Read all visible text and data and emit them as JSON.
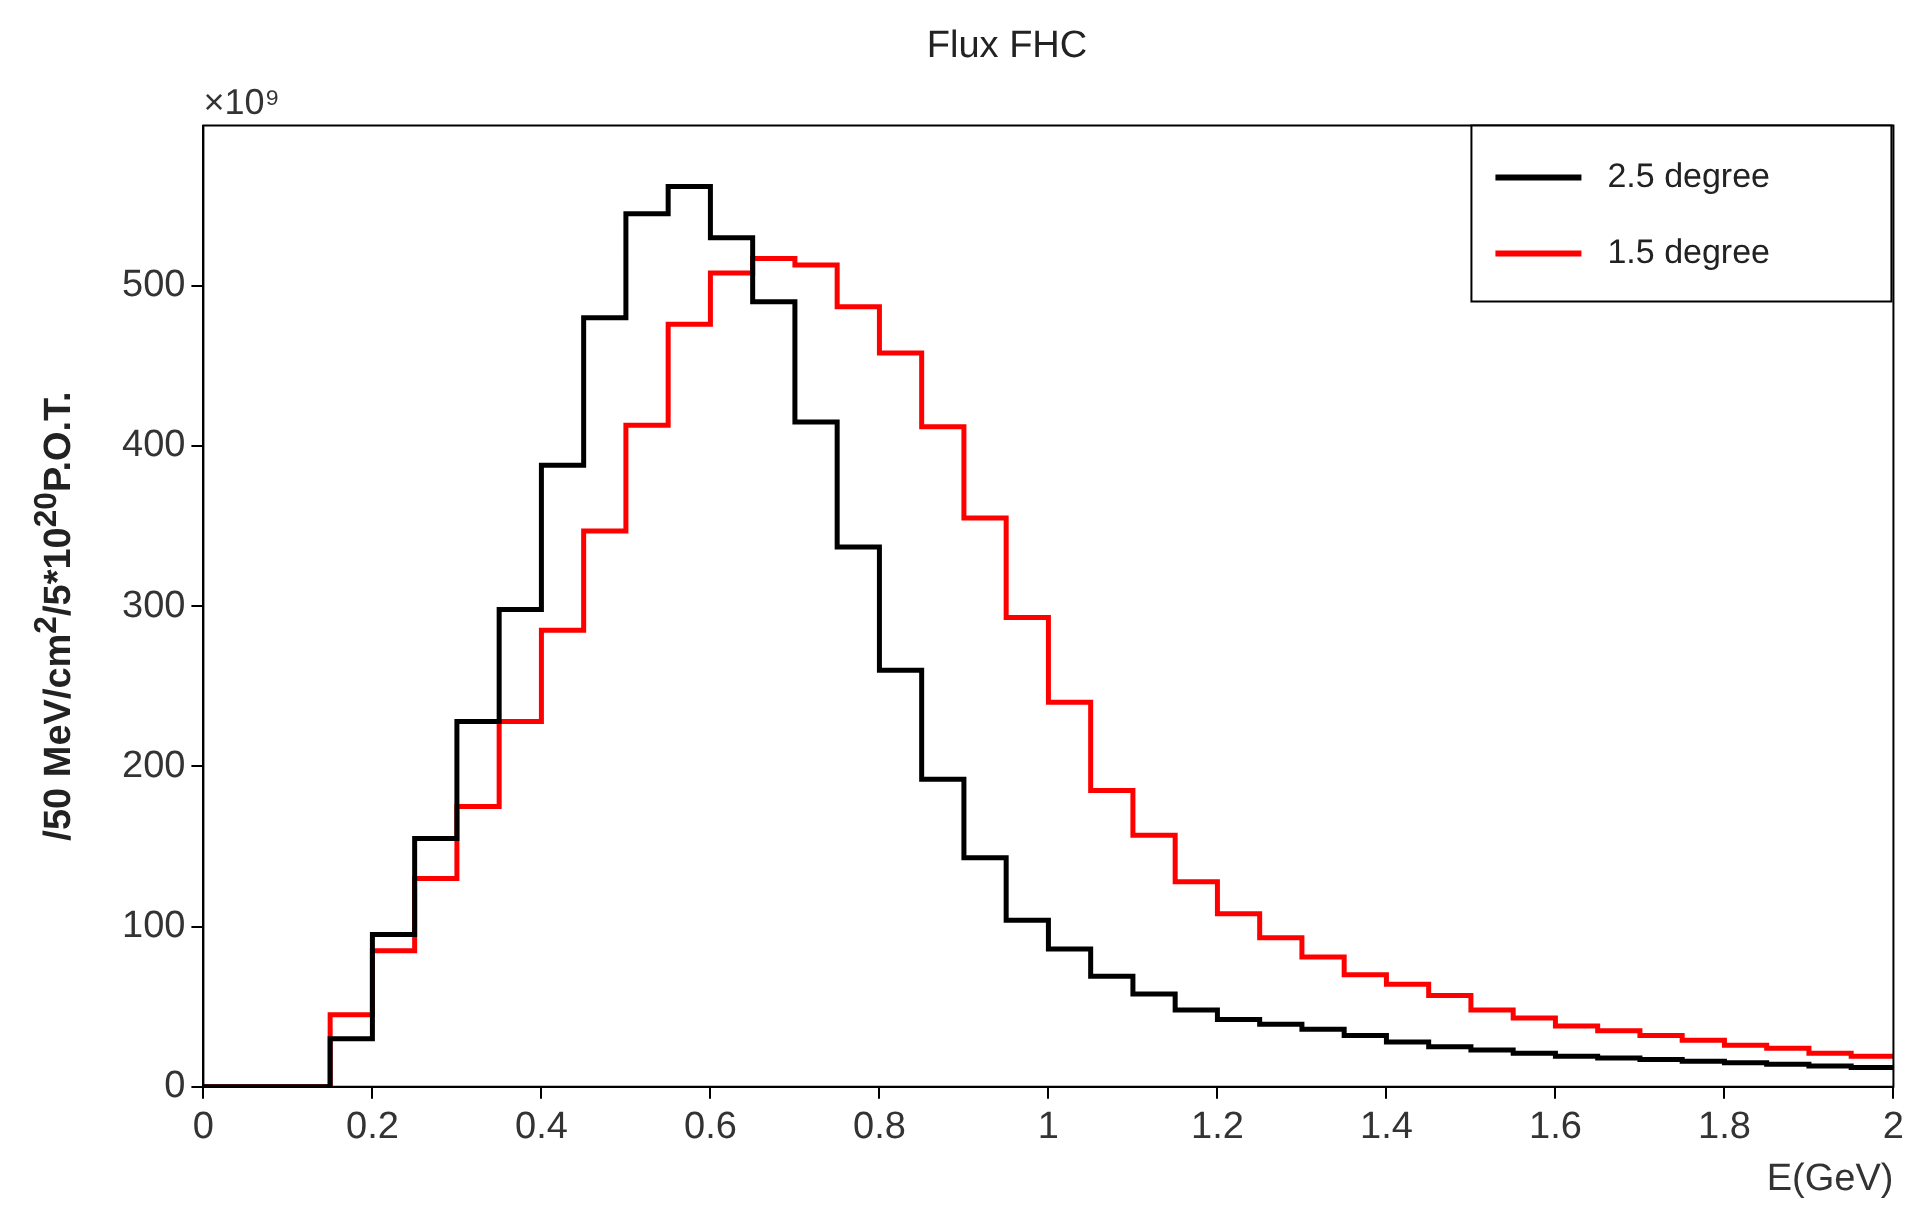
{
  "chart_data": {
    "type": "histogram",
    "title": "Flux FHC",
    "xlabel": "E(GeV)",
    "ylabel": "/50 MeV/cm$^{2}$/5*10$^{20}$P.O.T.",
    "annotations": [
      "×10⁹"
    ],
    "bins": [
      0,
      0.05,
      0.1,
      0.15,
      0.2,
      0.25,
      0.3,
      0.35,
      0.4,
      0.45,
      0.5,
      0.55,
      0.6,
      0.65,
      0.7,
      0.75,
      0.8,
      0.85,
      0.9,
      0.95,
      1,
      1.05,
      1.1,
      1.15,
      1.2,
      1.25,
      1.3,
      1.35,
      1.4,
      1.45,
      1.5,
      1.55,
      1.6,
      1.65,
      1.7,
      1.75,
      1.8,
      1.85,
      1.9,
      1.95,
      2
    ],
    "series": [
      {
        "name": "2.5 degree",
        "color": "#000000",
        "values": [
          0,
          0,
          0,
          30,
          95,
          155,
          228,
          298,
          388,
          480,
          545,
          562,
          530,
          490,
          415,
          337,
          260,
          192,
          143,
          104,
          86,
          69,
          58,
          48,
          42,
          39,
          36,
          32,
          28,
          25,
          23,
          21,
          19,
          18,
          17,
          16,
          15,
          14,
          13,
          12
        ]
      },
      {
        "name": "1.5 degree",
        "color": "#ff0000",
        "values": [
          0,
          0,
          0,
          45,
          85,
          130,
          175,
          228,
          285,
          347,
          413,
          476,
          508,
          517,
          513,
          487,
          458,
          412,
          355,
          293,
          240,
          185,
          157,
          128,
          108,
          93,
          81,
          70,
          64,
          57,
          48,
          43,
          38,
          35,
          32,
          29,
          26,
          24,
          21,
          19
        ]
      }
    ],
    "xlim": [
      0,
      2
    ],
    "xticks": [
      0,
      0.2,
      0.4,
      0.6,
      0.8,
      1,
      1.2,
      1.4,
      1.6,
      1.8,
      2
    ],
    "ylim": [
      0,
      600
    ],
    "yticks": [
      0,
      100,
      200,
      300,
      400,
      500
    ],
    "legend": "top right"
  }
}
